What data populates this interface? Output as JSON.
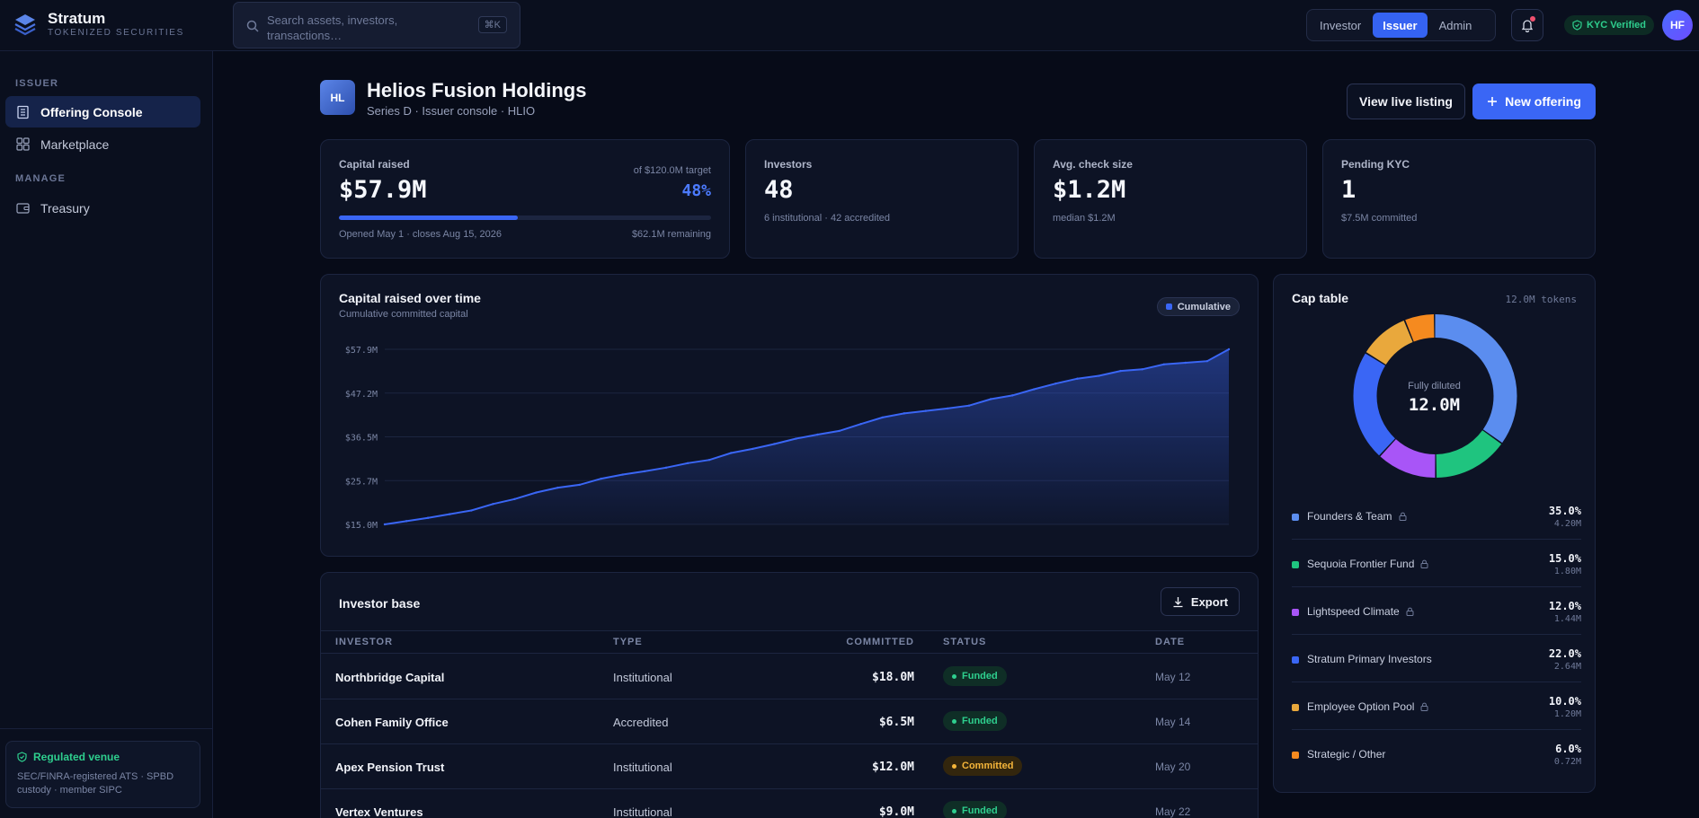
{
  "brand": {
    "name": "Stratum",
    "tagline": "TOKENIZED SECURITIES"
  },
  "search": {
    "placeholder": "Search assets, investors, transactions…",
    "shortcut": "⌘K"
  },
  "roles": [
    {
      "label": "Investor",
      "active": false
    },
    {
      "label": "Issuer",
      "active": true
    },
    {
      "label": "Admin",
      "active": false
    }
  ],
  "kyc_label": "KYC Verified",
  "user_initials": "HF",
  "sidebar": {
    "section_issuer": "ISSUER",
    "section_manage": "MANAGE",
    "items": [
      {
        "label": "Offering Console",
        "icon": "building-icon",
        "active": true
      },
      {
        "label": "Marketplace",
        "icon": "grid-icon",
        "active": false
      },
      {
        "label": "Treasury",
        "icon": "wallet-icon",
        "active": false
      }
    ],
    "regulated": {
      "title": "Regulated venue",
      "text": "SEC/FINRA-registered ATS · SPBD custody · member SIPC"
    }
  },
  "issuer": {
    "initials": "HL",
    "name": "Helios Fusion Holdings",
    "subtitle": "Series D · Issuer console · HLIO",
    "view_listing": "View live listing",
    "new_offering": "New offering"
  },
  "stats": {
    "capital": {
      "label": "Capital raised",
      "value": "$57.9M",
      "target": "of $120.0M target",
      "pct": "48%",
      "progress": 0.48,
      "opened": "Opened May 1 · closes Aug 15, 2026",
      "remaining": "$62.1M remaining"
    },
    "investors": {
      "label": "Investors",
      "value": "48",
      "sub": "6 institutional · 42 accredited"
    },
    "avg_check": {
      "label": "Avg. check size",
      "value": "$1.2M",
      "sub": "median $1.2M"
    },
    "pending_kyc": {
      "label": "Pending KYC",
      "value": "1",
      "sub": "$7.5M committed"
    }
  },
  "chart_panel": {
    "title": "Capital raised over time",
    "subtitle": "Cumulative committed capital",
    "legend": "Cumulative"
  },
  "chart_data": {
    "type": "area",
    "title": "Capital raised over time",
    "subtitle": "Cumulative committed capital",
    "series": [
      {
        "name": "Cumulative",
        "values": [
          15.0,
          15.8,
          16.6,
          17.5,
          18.4,
          20.0,
          21.2,
          22.8,
          24.0,
          24.7,
          26.2,
          27.2,
          28.0,
          28.9,
          30.0,
          30.8,
          32.5,
          33.5,
          34.7,
          36.0,
          37.0,
          37.9,
          39.6,
          41.2,
          42.2,
          42.8,
          43.4,
          44.1,
          45.7,
          46.6,
          48.1,
          49.5,
          50.7,
          51.4,
          52.6,
          53.0,
          54.2,
          54.6,
          55.0,
          57.9
        ],
        "color": "#3a66f5"
      }
    ],
    "y_ticks": [
      "$57.9M",
      "$47.2M",
      "$36.5M",
      "$25.7M",
      "$15.0M"
    ],
    "ylim": [
      15.0,
      57.9
    ],
    "grid": true,
    "legend_position": "top-right"
  },
  "cap_table": {
    "title": "Cap table",
    "total_tokens": "12.0M tokens",
    "center_label": "Fully diluted",
    "center_value": "12.0M",
    "rows": [
      {
        "name": "Founders & Team",
        "pct": "35.0%",
        "tokens": "4.20M",
        "share": 35.0,
        "color": "#5b8def",
        "locked": true
      },
      {
        "name": "Sequoia Frontier Fund",
        "pct": "15.0%",
        "tokens": "1.80M",
        "share": 15.0,
        "color": "#1fc47f",
        "locked": true
      },
      {
        "name": "Lightspeed Climate",
        "pct": "12.0%",
        "tokens": "1.44M",
        "share": 12.0,
        "color": "#a855f7",
        "locked": true
      },
      {
        "name": "Stratum Primary Investors",
        "pct": "22.0%",
        "tokens": "2.64M",
        "share": 22.0,
        "color": "#3a66f5",
        "locked": false
      },
      {
        "name": "Employee Option Pool",
        "pct": "10.0%",
        "tokens": "1.20M",
        "share": 10.0,
        "color": "#e9a83c",
        "locked": true
      },
      {
        "name": "Strategic / Other",
        "pct": "6.0%",
        "tokens": "0.72M",
        "share": 6.0,
        "color": "#f58a1f",
        "locked": false
      }
    ]
  },
  "investor_base": {
    "title": "Investor base",
    "export_label": "Export",
    "columns": [
      "INVESTOR",
      "TYPE",
      "COMMITTED",
      "STATUS",
      "DATE"
    ],
    "rows": [
      {
        "name": "Northbridge Capital",
        "type": "Institutional",
        "committed": "$18.0M",
        "status": "Funded",
        "date": "May 12"
      },
      {
        "name": "Cohen Family Office",
        "type": "Accredited",
        "committed": "$6.5M",
        "status": "Funded",
        "date": "May 14"
      },
      {
        "name": "Apex Pension Trust",
        "type": "Institutional",
        "committed": "$12.0M",
        "status": "Committed",
        "date": "May 20"
      },
      {
        "name": "Vertex Ventures",
        "type": "Institutional",
        "committed": "$9.0M",
        "status": "Funded",
        "date": "May 22"
      }
    ]
  }
}
